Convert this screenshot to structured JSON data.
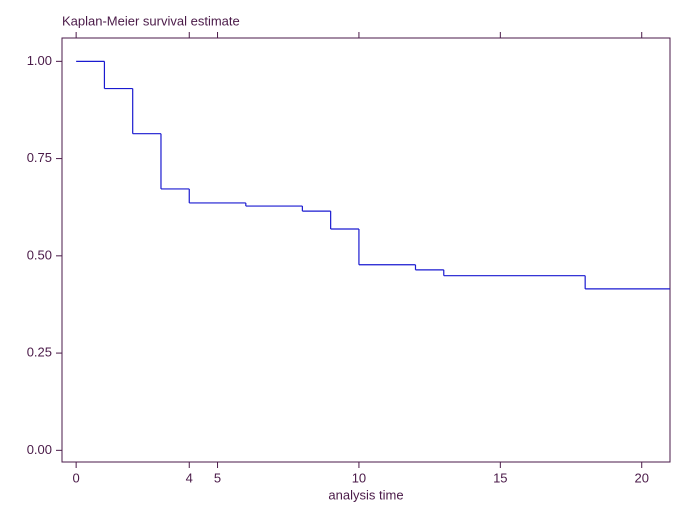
{
  "chart_data": {
    "type": "step",
    "title": "Kaplan-Meier survival estimate",
    "x_label": "analysis time",
    "series": [
      {
        "color": "#1a1ad0",
        "x": [
          0,
          1,
          2,
          3,
          4,
          6,
          8,
          9,
          10,
          12,
          13,
          18,
          21
        ],
        "values": [
          1,
          0.93,
          0.814,
          0.672,
          0.636,
          0.628,
          0.615,
          0.569,
          0.477,
          0.464,
          0.449,
          0.415,
          0.415
        ]
      }
    ],
    "xlim": [
      -0.5,
      21
    ],
    "ylim": [
      -0.03,
      1.06
    ],
    "xticks": [
      0,
      4,
      5,
      10,
      15,
      20
    ],
    "yticks": [
      {
        "value": 0,
        "label": "0.00"
      },
      {
        "value": 0.25,
        "label": "0.25"
      },
      {
        "value": 0.5,
        "label": "0.50"
      },
      {
        "value": 0.75,
        "label": "0.75"
      },
      {
        "value": 1,
        "label": "1.00"
      }
    ],
    "axis_color": "#4a1a48"
  }
}
